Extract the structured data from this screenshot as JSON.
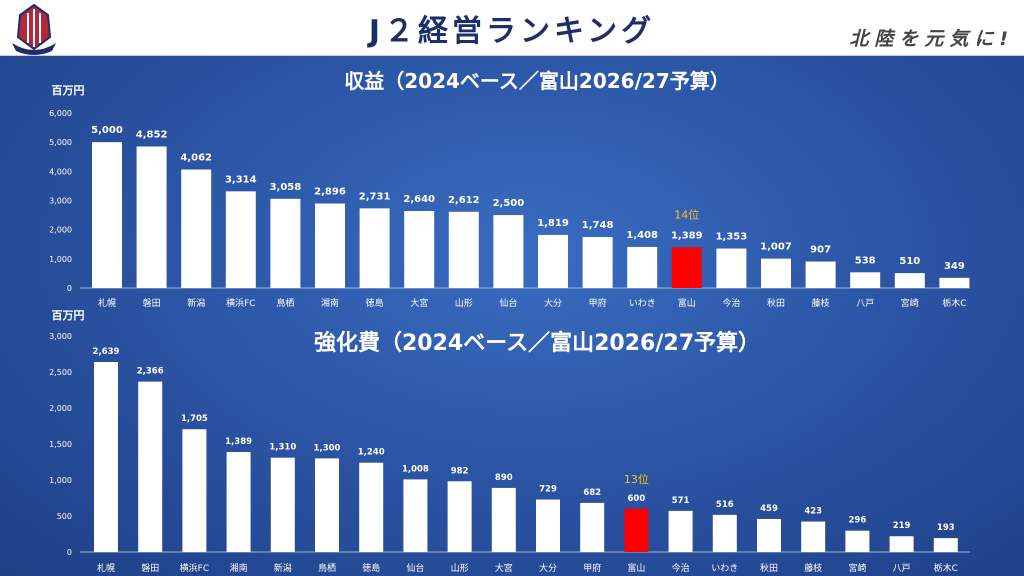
{
  "header": {
    "title": "J２経営ランキング",
    "slogan": "北陸を元気に!"
  },
  "colors": {
    "bar": "#ffffff",
    "highlight": "#ff0000",
    "rank_label": "#f5c518",
    "header_title": "#1c2f6b"
  },
  "chart_data": [
    {
      "type": "bar",
      "title": "収益（2024ベース／富山2026/27予算）",
      "ylabel": "百万円",
      "ylim": [
        0,
        6000
      ],
      "yticks": [
        0,
        1000,
        2000,
        3000,
        4000,
        5000,
        6000
      ],
      "ytick_labels": [
        "0",
        "1,000",
        "2,000",
        "3,000",
        "4,000",
        "5,000",
        "6,000"
      ],
      "categories": [
        "札幌",
        "磐田",
        "新潟",
        "横浜FC",
        "鳥栖",
        "湘南",
        "徳島",
        "大宮",
        "山形",
        "仙台",
        "大分",
        "甲府",
        "いわき",
        "富山",
        "今治",
        "秋田",
        "藤枝",
        "八戸",
        "宮崎",
        "栃木C"
      ],
      "values": [
        5000,
        4852,
        4062,
        3314,
        3058,
        2896,
        2731,
        2640,
        2612,
        2500,
        1819,
        1748,
        1408,
        1389,
        1353,
        1007,
        907,
        538,
        510,
        349
      ],
      "data_labels": [
        "5,000",
        "4,852",
        "4,062",
        "3,314",
        "3,058",
        "2,896",
        "2,731",
        "2,640",
        "2,612",
        "2,500",
        "1,819",
        "1,748",
        "1,408",
        "1,389",
        "1,353",
        "1,007",
        "907",
        "538",
        "510",
        "349"
      ],
      "highlight": "富山",
      "annotation": "14位",
      "grid": false
    },
    {
      "type": "bar",
      "title": "強化費（2024ベース／富山2026/27予算）",
      "ylabel": "百万円",
      "ylim": [
        0,
        3000
      ],
      "yticks": [
        0,
        500,
        1000,
        1500,
        2000,
        2500,
        3000
      ],
      "ytick_labels": [
        "0",
        "500",
        "1,000",
        "1,500",
        "2,000",
        "2,500",
        "3,000"
      ],
      "categories": [
        "札幌",
        "磐田",
        "横浜FC",
        "湘南",
        "新潟",
        "鳥栖",
        "徳島",
        "仙台",
        "山形",
        "大宮",
        "大分",
        "甲府",
        "富山",
        "今治",
        "いわき",
        "秋田",
        "藤枝",
        "宮崎",
        "八戸",
        "栃木C"
      ],
      "values": [
        2639,
        2366,
        1705,
        1389,
        1310,
        1300,
        1240,
        1008,
        982,
        890,
        729,
        682,
        600,
        571,
        516,
        459,
        423,
        296,
        219,
        193
      ],
      "data_labels": [
        "2,639",
        "2,366",
        "1,705",
        "1,389",
        "1,310",
        "1,300",
        "1,240",
        "1,008",
        "982",
        "890",
        "729",
        "682",
        "600",
        "571",
        "516",
        "459",
        "423",
        "296",
        "219",
        "193"
      ],
      "highlight": "富山",
      "annotation": "13位",
      "grid": false
    }
  ]
}
